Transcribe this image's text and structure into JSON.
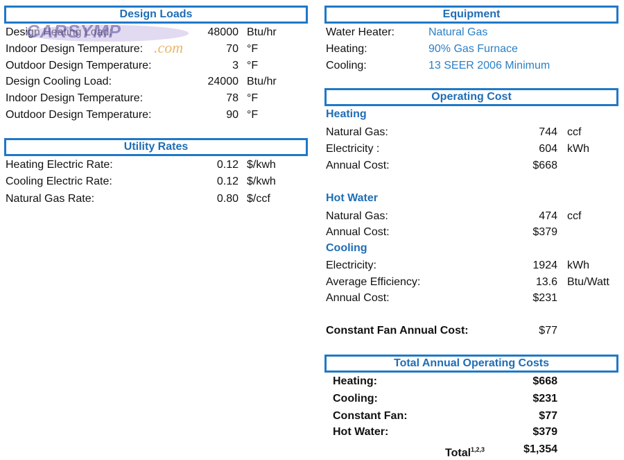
{
  "design_loads": {
    "title": "Design Loads",
    "rows": [
      {
        "label": "Design Heating Load:",
        "value": "48000",
        "unit": "Btu/hr"
      },
      {
        "label": "Indoor Design Temperature:",
        "value": "70",
        "unit": "°F"
      },
      {
        "label": "Outdoor Design Temperature:",
        "value": "3",
        "unit": "°F"
      },
      {
        "label": "Design Cooling Load:",
        "value": "24000",
        "unit": "Btu/hr"
      },
      {
        "label": "Indoor Design Temperature:",
        "value": "78",
        "unit": "°F"
      },
      {
        "label": "Outdoor Design Temperature:",
        "value": "90",
        "unit": "°F"
      }
    ]
  },
  "utility_rates": {
    "title": "Utility Rates",
    "rows": [
      {
        "label": "Heating Electric Rate:",
        "value": "0.12",
        "unit": "$/kwh"
      },
      {
        "label": "Cooling Electric Rate:",
        "value": "0.12",
        "unit": "$/kwh"
      },
      {
        "label": "Natural Gas Rate:",
        "value": "0.80",
        "unit": "$/ccf"
      }
    ]
  },
  "equipment": {
    "title": "Equipment",
    "rows": [
      {
        "label": "Water Heater:",
        "value": "Natural Gas"
      },
      {
        "label": "Heating:",
        "value": "90% Gas Furnace"
      },
      {
        "label": "Cooling:",
        "value": "13 SEER 2006 Minimum"
      }
    ]
  },
  "operating_cost": {
    "title": "Operating Cost",
    "heating": {
      "title": "Heating",
      "rows": [
        {
          "label": "Natural Gas:",
          "value": "744",
          "unit": "ccf"
        },
        {
          "label": "Electricity :",
          "value": "604",
          "unit": "kWh"
        },
        {
          "label": "Annual Cost:",
          "value": "$668",
          "unit": ""
        }
      ]
    },
    "hot_water": {
      "title": "Hot Water",
      "rows": [
        {
          "label": "Natural Gas:",
          "value": "474",
          "unit": "ccf"
        },
        {
          "label": "Annual Cost:",
          "value": "$379",
          "unit": ""
        }
      ]
    },
    "cooling": {
      "title": "Cooling",
      "rows": [
        {
          "label": "Electricity:",
          "value": "1924",
          "unit": "kWh"
        },
        {
          "label": "Average Efficiency:",
          "value": "13.6",
          "unit": "Btu/Watt"
        },
        {
          "label": "Annual Cost:",
          "value": "$231",
          "unit": ""
        }
      ]
    },
    "constant_fan": {
      "label": "Constant Fan Annual Cost:",
      "value": "$77"
    }
  },
  "totals": {
    "title": "Total Annual Operating Costs",
    "rows": [
      {
        "label": "Heating:",
        "value": "$668"
      },
      {
        "label": "Cooling:",
        "value": "$231"
      },
      {
        "label": "Constant Fan:",
        "value": "$77"
      },
      {
        "label": "Hot Water:",
        "value": "$379"
      }
    ],
    "total_label": "Total",
    "total_sup": "1,2,3",
    "total_value": "$1,354"
  },
  "watermark": {
    "text": "CARSYMP",
    "suffix": ".com"
  }
}
